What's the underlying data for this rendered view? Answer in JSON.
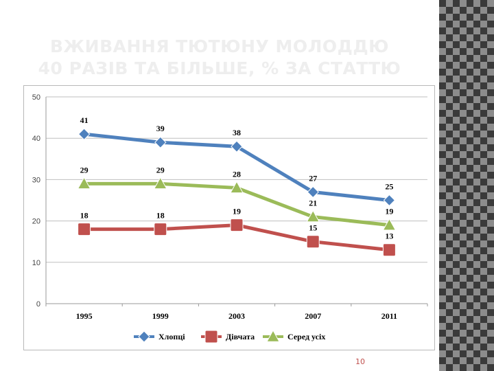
{
  "slide": {
    "title_line1": "ВЖИВАННЯ ТЮТЮНУ МОЛОДДЮ",
    "title_line2": "40 РАЗІВ ТА БІЛЬШЕ, % ЗА СТАТТЮ",
    "page_number": "10"
  },
  "colors": {
    "boys": "#4f81bd",
    "girls": "#c0504d",
    "all": "#9bbb59",
    "side_pattern": "#8c8c8c"
  },
  "chart_data": {
    "type": "line",
    "title": "",
    "xlabel": "",
    "ylabel": "",
    "categories": [
      "1995",
      "1999",
      "2003",
      "2007",
      "2011"
    ],
    "ylim": [
      0,
      50
    ],
    "yticks": [
      "0",
      "10",
      "20",
      "30",
      "40",
      "50"
    ],
    "grid": true,
    "legend_position": "bottom",
    "series": [
      {
        "name": "Хлопці",
        "values": [
          41,
          39,
          38,
          27,
          25
        ],
        "color": "#4f81bd",
        "marker": "diamond"
      },
      {
        "name": "Дівчата",
        "values": [
          18,
          18,
          19,
          15,
          13
        ],
        "color": "#c0504d",
        "marker": "square"
      },
      {
        "name": "Серед усіх",
        "values": [
          29,
          29,
          28,
          21,
          19
        ],
        "color": "#9bbb59",
        "marker": "triangle"
      }
    ]
  }
}
